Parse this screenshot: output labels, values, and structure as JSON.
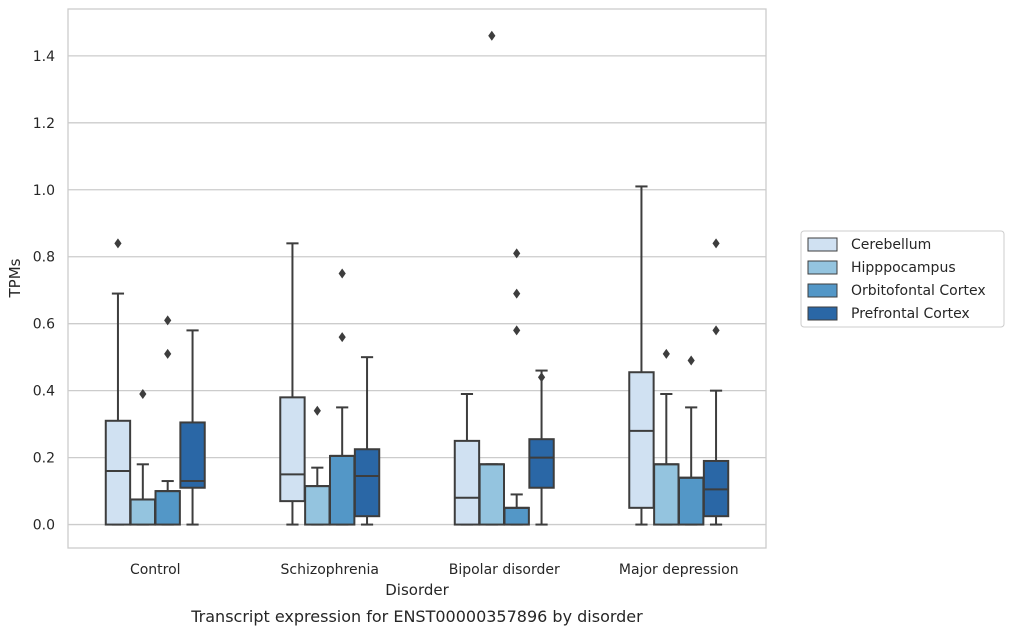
{
  "chart_data": {
    "type": "boxplot",
    "xlabel": "Disorder",
    "ylabel": "TPMs",
    "caption": "Transcript expression for ENST00000357896 by disorder",
    "ylim": [
      -0.07,
      1.54
    ],
    "yticks": [
      0.0,
      0.2,
      0.4,
      0.6,
      0.8,
      1.0,
      1.2,
      1.4
    ],
    "ytick_labels": [
      "0.0",
      "0.2",
      "0.4",
      "0.6",
      "0.8",
      "1.0",
      "1.2",
      "1.4"
    ],
    "grid": "y",
    "legend_position": "right",
    "categories": [
      "Control",
      "Schizophrenia",
      "Bipolar disorder",
      "Major depression"
    ],
    "series": [
      {
        "name": "Cerebellum",
        "color": "#d0e1f2",
        "boxes": [
          {
            "whislo": 0.0,
            "q1": 0.0,
            "med": 0.16,
            "q3": 0.31,
            "whishi": 0.69,
            "fliers": [
              0.84
            ]
          },
          {
            "whislo": 0.0,
            "q1": 0.07,
            "med": 0.15,
            "q3": 0.38,
            "whishi": 0.84,
            "fliers": []
          },
          {
            "whislo": 0.0,
            "q1": 0.0,
            "med": 0.08,
            "q3": 0.25,
            "whishi": 0.39,
            "fliers": []
          },
          {
            "whislo": 0.0,
            "q1": 0.05,
            "med": 0.28,
            "q3": 0.455,
            "whishi": 1.01,
            "fliers": []
          }
        ]
      },
      {
        "name": "Hipppocampus",
        "color": "#94c4df",
        "boxes": [
          {
            "whislo": 0.0,
            "q1": 0.0,
            "med": 0.075,
            "q3": 0.075,
            "whishi": 0.18,
            "fliers": [
              0.39
            ]
          },
          {
            "whislo": 0.0,
            "q1": 0.0,
            "med": 0.115,
            "q3": 0.115,
            "whishi": 0.17,
            "fliers": [
              0.34
            ]
          },
          {
            "whislo": 0.0,
            "q1": 0.0,
            "med": 0.18,
            "q3": 0.18,
            "whishi": 0.18,
            "fliers": [
              1.46
            ]
          },
          {
            "whislo": 0.0,
            "q1": 0.0,
            "med": 0.18,
            "q3": 0.18,
            "whishi": 0.39,
            "fliers": [
              0.51
            ]
          }
        ]
      },
      {
        "name": "Orbitofontal Cortex",
        "color": "#5397c7",
        "boxes": [
          {
            "whislo": 0.0,
            "q1": 0.0,
            "med": 0.1,
            "q3": 0.1,
            "whishi": 0.13,
            "fliers": [
              0.51,
              0.61
            ]
          },
          {
            "whislo": 0.0,
            "q1": 0.0,
            "med": 0.205,
            "q3": 0.205,
            "whishi": 0.35,
            "fliers": [
              0.56,
              0.75
            ]
          },
          {
            "whislo": 0.0,
            "q1": 0.0,
            "med": 0.05,
            "q3": 0.05,
            "whishi": 0.09,
            "fliers": [
              0.58,
              0.69,
              0.81
            ]
          },
          {
            "whislo": 0.0,
            "q1": 0.0,
            "med": 0.14,
            "q3": 0.14,
            "whishi": 0.35,
            "fliers": [
              0.49
            ]
          }
        ]
      },
      {
        "name": "Prefrontal Cortex",
        "color": "#2a67a6",
        "boxes": [
          {
            "whislo": 0.0,
            "q1": 0.11,
            "med": 0.13,
            "q3": 0.305,
            "whishi": 0.58,
            "fliers": []
          },
          {
            "whislo": 0.0,
            "q1": 0.025,
            "med": 0.145,
            "q3": 0.225,
            "whishi": 0.5,
            "fliers": []
          },
          {
            "whislo": 0.0,
            "q1": 0.11,
            "med": 0.2,
            "q3": 0.255,
            "whishi": 0.46,
            "fliers": [
              0.44
            ]
          },
          {
            "whislo": 0.0,
            "q1": 0.025,
            "med": 0.105,
            "q3": 0.19,
            "whishi": 0.4,
            "fliers": [
              0.58,
              0.84
            ]
          }
        ]
      }
    ]
  }
}
